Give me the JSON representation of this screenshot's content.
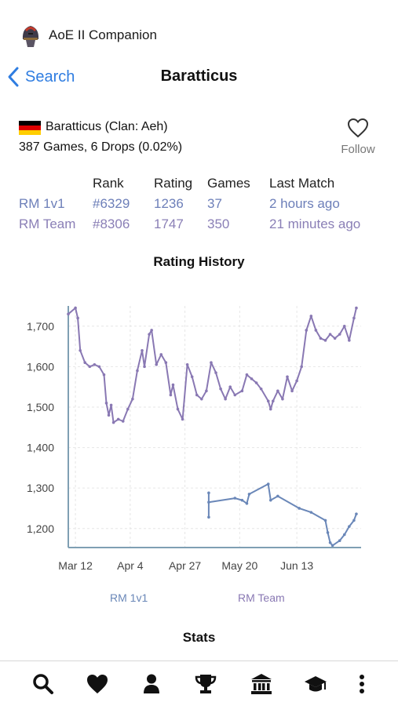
{
  "app": {
    "title": "AoE II Companion"
  },
  "nav": {
    "back_label": "Search",
    "title": "Baratticus"
  },
  "player": {
    "name_line": "Baratticus (Clan: Aeh)",
    "games_line": "387 Games, 6 Drops (0.02%)",
    "follow_label": "Follow",
    "flag_colors": [
      "#000000",
      "#dd0000",
      "#ffce00"
    ]
  },
  "ranks": {
    "headers": {
      "rank": "Rank",
      "rating": "Rating",
      "games": "Games",
      "last": "Last Match"
    },
    "rows": [
      {
        "mode": "RM 1v1",
        "rank": "#6329",
        "rating": "1236",
        "games": "37",
        "last": "2 hours ago"
      },
      {
        "mode": "RM Team",
        "rank": "#8306",
        "rating": "1747",
        "games": "350",
        "last": "21 minutes ago"
      }
    ]
  },
  "stats": {
    "title": "Stats"
  },
  "chart_data": {
    "type": "line",
    "title": "Rating History",
    "x_ticks": [
      "Mar 12",
      "Apr 4",
      "Apr 27",
      "May 20",
      "Jun 13"
    ],
    "xlim": [
      "Mar 9",
      "Jul 10"
    ],
    "y_ticks": [
      1200,
      1300,
      1400,
      1500,
      1600,
      1700
    ],
    "ylim": [
      1153,
      1750
    ],
    "grid": true,
    "legend_position": "bottom",
    "series": [
      {
        "name": "RM Team",
        "color": "#8978b3",
        "points": [
          [
            "Mar 9",
            1730
          ],
          [
            "Mar 12",
            1745
          ],
          [
            "Mar 13",
            1720
          ],
          [
            "Mar 14",
            1640
          ],
          [
            "Mar 16",
            1610
          ],
          [
            "Mar 18",
            1600
          ],
          [
            "Mar 20",
            1605
          ],
          [
            "Mar 22",
            1600
          ],
          [
            "Mar 24",
            1580
          ],
          [
            "Mar 25",
            1510
          ],
          [
            "Mar 26",
            1480
          ],
          [
            "Mar 27",
            1505
          ],
          [
            "Mar 28",
            1462
          ],
          [
            "Mar 30",
            1470
          ],
          [
            "Apr 1",
            1465
          ],
          [
            "Apr 3",
            1495
          ],
          [
            "Apr 5",
            1520
          ],
          [
            "Apr 7",
            1590
          ],
          [
            "Apr 9",
            1640
          ],
          [
            "Apr 10",
            1600
          ],
          [
            "Apr 12",
            1680
          ],
          [
            "Apr 13",
            1690
          ],
          [
            "Apr 15",
            1605
          ],
          [
            "Apr 17",
            1630
          ],
          [
            "Apr 19",
            1610
          ],
          [
            "Apr 21",
            1530
          ],
          [
            "Apr 22",
            1555
          ],
          [
            "Apr 24",
            1495
          ],
          [
            "Apr 26",
            1470
          ],
          [
            "Apr 28",
            1605
          ],
          [
            "Apr 30",
            1575
          ],
          [
            "May 2",
            1530
          ],
          [
            "May 4",
            1520
          ],
          [
            "May 6",
            1540
          ],
          [
            "May 8",
            1610
          ],
          [
            "May 10",
            1585
          ],
          [
            "May 12",
            1545
          ],
          [
            "May 14",
            1520
          ],
          [
            "May 16",
            1550
          ],
          [
            "May 18",
            1530
          ],
          [
            "May 21",
            1540
          ],
          [
            "May 23",
            1580
          ],
          [
            "May 25",
            1570
          ],
          [
            "May 27",
            1560
          ],
          [
            "May 29",
            1545
          ],
          [
            "Jun 1",
            1515
          ],
          [
            "Jun 2",
            1495
          ],
          [
            "Jun 3",
            1515
          ],
          [
            "Jun 5",
            1540
          ],
          [
            "Jun 7",
            1520
          ],
          [
            "Jun 9",
            1575
          ],
          [
            "Jun 11",
            1540
          ],
          [
            "Jun 13",
            1565
          ],
          [
            "Jun 15",
            1600
          ],
          [
            "Jun 17",
            1690
          ],
          [
            "Jun 19",
            1725
          ],
          [
            "Jun 21",
            1690
          ],
          [
            "Jun 23",
            1670
          ],
          [
            "Jun 25",
            1665
          ],
          [
            "Jun 27",
            1680
          ],
          [
            "Jun 29",
            1670
          ],
          [
            "Jul 1",
            1680
          ],
          [
            "Jul 3",
            1700
          ],
          [
            "Jul 5",
            1665
          ],
          [
            "Jul 7",
            1720
          ],
          [
            "Jul 8",
            1745
          ]
        ]
      },
      {
        "name": "RM 1v1",
        "color": "#6a87b8",
        "points": [
          [
            "May 7",
            1288
          ],
          [
            "May 7",
            1228
          ],
          [
            "May 7",
            1265
          ],
          [
            "May 18",
            1275
          ],
          [
            "May 21",
            1270
          ],
          [
            "May 23",
            1262
          ],
          [
            "May 24",
            1285
          ],
          [
            "Jun 1",
            1310
          ],
          [
            "Jun 2",
            1270
          ],
          [
            "Jun 5",
            1280
          ],
          [
            "Jun 14",
            1250
          ],
          [
            "Jun 19",
            1240
          ],
          [
            "Jun 25",
            1220
          ],
          [
            "Jun 26",
            1190
          ],
          [
            "Jun 27",
            1165
          ],
          [
            "Jun 28",
            1158
          ],
          [
            "Jul 1",
            1170
          ],
          [
            "Jul 3",
            1185
          ],
          [
            "Jul 5",
            1205
          ],
          [
            "Jul 7",
            1220
          ],
          [
            "Jul 8",
            1236
          ]
        ]
      }
    ]
  }
}
